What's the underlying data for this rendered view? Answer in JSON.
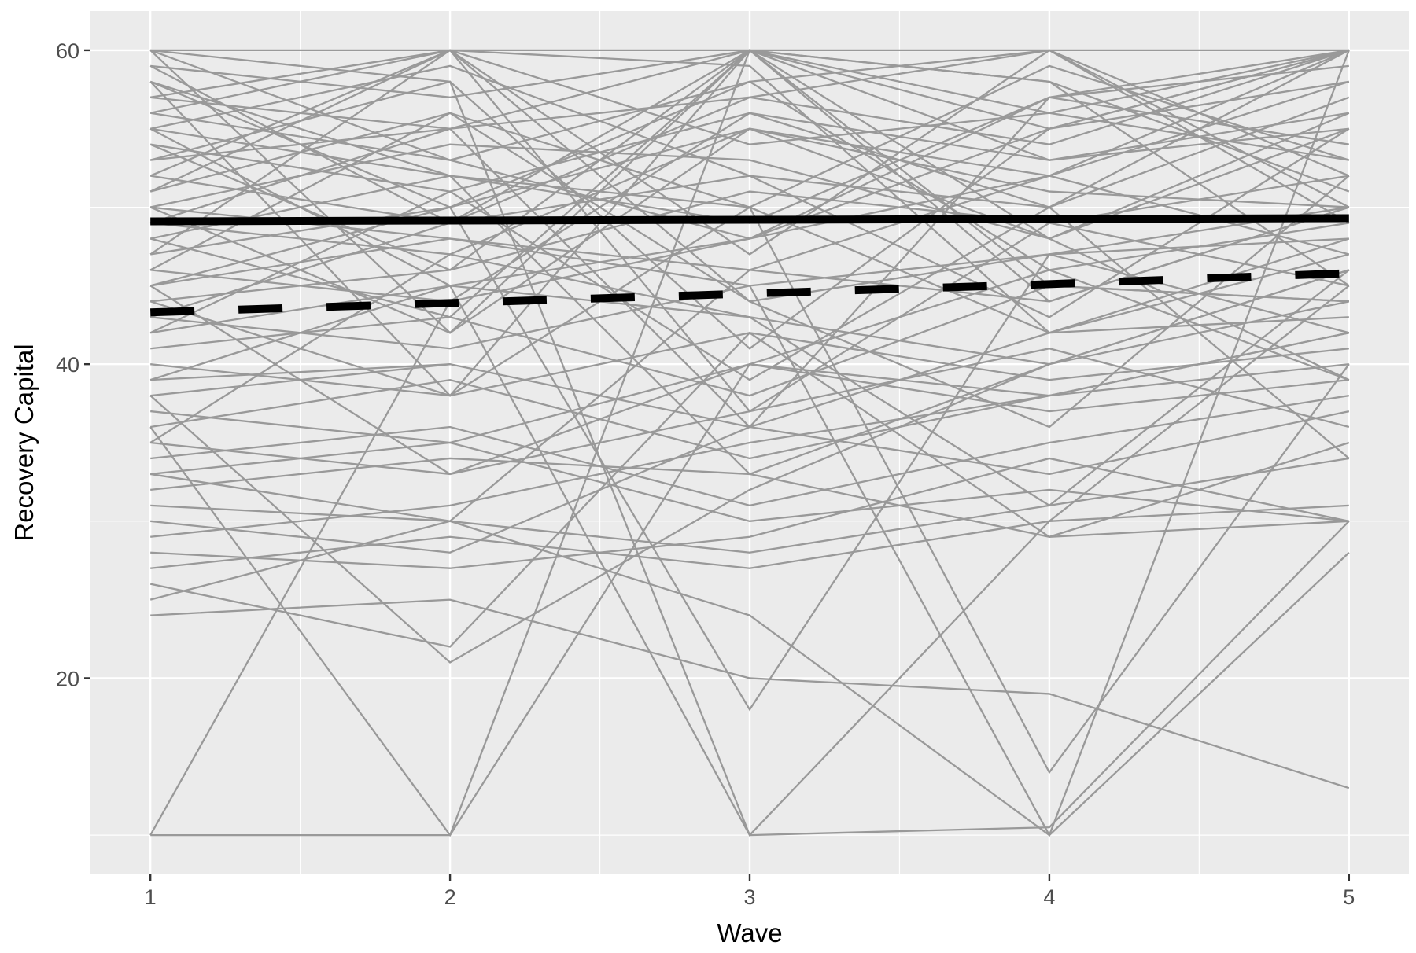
{
  "chart_data": {
    "type": "line",
    "title": "",
    "xlabel": "Wave",
    "ylabel": "Recovery Capital",
    "x": [
      1,
      2,
      3,
      4,
      5
    ],
    "xlim": [
      0.8,
      5.2
    ],
    "ylim": [
      7.5,
      62.5
    ],
    "x_ticks": [
      1,
      2,
      3,
      4,
      5
    ],
    "y_ticks": [
      20,
      40,
      60
    ],
    "grid": true,
    "colors": {
      "panel": "#EBEBEB",
      "grid": "#FFFFFF",
      "individual": "#999999",
      "mean": "#000000"
    },
    "mean_series": [
      {
        "name": "mean-solid",
        "style": "solid",
        "values": [
          49.1,
          49.15,
          49.2,
          49.25,
          49.3
        ]
      },
      {
        "name": "mean-dashed",
        "style": "dashed",
        "values": [
          43.3,
          43.9,
          44.5,
          45.1,
          45.8
        ]
      }
    ],
    "individual_series": [
      [
        10,
        10,
        60,
        48,
        55
      ],
      [
        24,
        25,
        20,
        19,
        13
      ],
      [
        10,
        44,
        56,
        50,
        60
      ],
      [
        36,
        10,
        40,
        38,
        42
      ],
      [
        55,
        45,
        10,
        30,
        45
      ],
      [
        60,
        58,
        10,
        10.5,
        30
      ],
      [
        50,
        48,
        45,
        10,
        60
      ],
      [
        58,
        52,
        50,
        14,
        40
      ],
      [
        45,
        50,
        18,
        47,
        50
      ],
      [
        26,
        22,
        42,
        29,
        30
      ],
      [
        38,
        21,
        32,
        40,
        44
      ],
      [
        25,
        30,
        28,
        31,
        34
      ],
      [
        27,
        29,
        27,
        30,
        31
      ],
      [
        31,
        30,
        24,
        10,
        28
      ],
      [
        33,
        35,
        30,
        32,
        30
      ],
      [
        60,
        60,
        60,
        60,
        60
      ],
      [
        59,
        57,
        60,
        55,
        58
      ],
      [
        57,
        60,
        54,
        56,
        60
      ],
      [
        56,
        53,
        58,
        60,
        52
      ],
      [
        55,
        59,
        52,
        50,
        57
      ],
      [
        54,
        51,
        56,
        53,
        55
      ],
      [
        53,
        55,
        60,
        58,
        51
      ],
      [
        52,
        49,
        57,
        54,
        60
      ],
      [
        51,
        56,
        50,
        59,
        53
      ],
      [
        50,
        54,
        53,
        48,
        56
      ],
      [
        49,
        47,
        55,
        51,
        50
      ],
      [
        48,
        52,
        49,
        57,
        54
      ],
      [
        47,
        50,
        58,
        46,
        49
      ],
      [
        46,
        44,
        48,
        52,
        47
      ],
      [
        45,
        48,
        46,
        44,
        50
      ],
      [
        44,
        46,
        51,
        49,
        52
      ],
      [
        43,
        41,
        45,
        47,
        48
      ],
      [
        42,
        45,
        43,
        40,
        46
      ],
      [
        41,
        43,
        38,
        45,
        44
      ],
      [
        40,
        38,
        42,
        39,
        41
      ],
      [
        39,
        40,
        36,
        42,
        43
      ],
      [
        37,
        35,
        40,
        37,
        39
      ],
      [
        36,
        39,
        34,
        38,
        40
      ],
      [
        35,
        33,
        37,
        41,
        36
      ],
      [
        34,
        36,
        31,
        35,
        38
      ],
      [
        32,
        34,
        33,
        29,
        35
      ],
      [
        30,
        28,
        36,
        33,
        37
      ],
      [
        29,
        31,
        35,
        38,
        42
      ],
      [
        28,
        27,
        29,
        34,
        30
      ],
      [
        60,
        42,
        55,
        48,
        39
      ],
      [
        58,
        38,
        60,
        44,
        50
      ],
      [
        57,
        55,
        36,
        57,
        59
      ],
      [
        53,
        58,
        41,
        55,
        60
      ],
      [
        52,
        60,
        47,
        60,
        49
      ],
      [
        59,
        49,
        60,
        53,
        56
      ],
      [
        40,
        null,
        null,
        null,
        null
      ],
      [
        38,
        40,
        null,
        null,
        null
      ],
      [
        44,
        38,
        50,
        42,
        47
      ],
      [
        46,
        56,
        44,
        36,
        52
      ],
      [
        48,
        43,
        60,
        58,
        45
      ],
      [
        42,
        51,
        39,
        50,
        34
      ],
      [
        35,
        47,
        43,
        31,
        46
      ],
      [
        33,
        30,
        46,
        52,
        58
      ],
      [
        56,
        60,
        59,
        42,
        48
      ],
      [
        54,
        46,
        60,
        56,
        53
      ],
      [
        60,
        53,
        48,
        55,
        60
      ],
      [
        50,
        42,
        60,
        45,
        44
      ],
      [
        47,
        60,
        37,
        49,
        45
      ],
      [
        43,
        49,
        52,
        43,
        55
      ],
      [
        39,
        45,
        48,
        57,
        60
      ],
      [
        55,
        52,
        33,
        40,
        46
      ],
      [
        51,
        60,
        44,
        47,
        42
      ],
      [
        49,
        55,
        57,
        60,
        50
      ],
      [
        45,
        33,
        40,
        46,
        39
      ],
      [
        58,
        50,
        55,
        52,
        60
      ]
    ]
  }
}
